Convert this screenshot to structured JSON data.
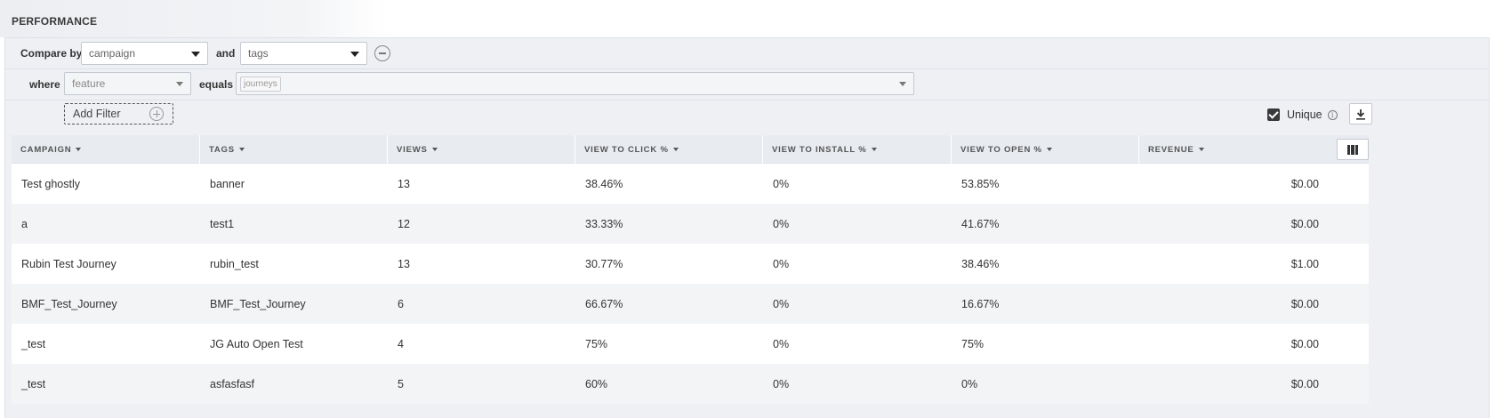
{
  "header": {
    "title": "PERFORMANCE"
  },
  "compare": {
    "label": "Compare by",
    "first_value": "campaign",
    "and_label": "and",
    "second_value": "tags"
  },
  "filter": {
    "where_label": "where",
    "field_value": "feature",
    "equals_label": "equals",
    "chip": "journeys"
  },
  "add_filter": {
    "label": "Add Filter"
  },
  "unique": {
    "label": "Unique",
    "checked": true
  },
  "table": {
    "columns": [
      "CAMPAIGN",
      "TAGS",
      "VIEWS",
      "VIEW TO CLICK %",
      "VIEW TO INSTALL %",
      "VIEW TO OPEN %",
      "REVENUE"
    ],
    "rows": [
      [
        "Test ghostly",
        "banner",
        "13",
        "38.46%",
        "0%",
        "53.85%",
        "$0.00"
      ],
      [
        "a",
        "test1",
        "12",
        "33.33%",
        "0%",
        "41.67%",
        "$0.00"
      ],
      [
        "Rubin Test Journey",
        "rubin_test",
        "13",
        "30.77%",
        "0%",
        "38.46%",
        "$1.00"
      ],
      [
        "BMF_Test_Journey",
        "BMF_Test_Journey",
        "6",
        "66.67%",
        "0%",
        "16.67%",
        "$0.00"
      ],
      [
        "_test",
        "JG Auto Open Test",
        "4",
        "75%",
        "0%",
        "75%",
        "$0.00"
      ],
      [
        "_test",
        "asfasfasf",
        "5",
        "60%",
        "0%",
        "0%",
        "$0.00"
      ]
    ]
  }
}
